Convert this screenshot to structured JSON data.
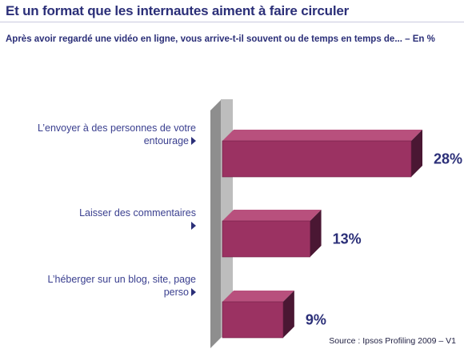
{
  "title": "Et un format que les internautes aiment à faire circuler",
  "subtitle": "Après avoir regardé une vidéo en ligne, vous arrive-t-il souvent ou de temps en temps de... – En %",
  "source": "Source : Ipsos Profiling 2009 – V1",
  "colors": {
    "bar_front": "#9b3262",
    "bar_top": "#b8507d",
    "bar_side": "#4a1733",
    "wall_front": "#bdbdbd",
    "wall_side": "#8e8e8e",
    "label": "#3a3f8f",
    "value": "#2b2f78"
  },
  "chart_data": {
    "type": "bar",
    "orientation": "horizontal",
    "style": "3d",
    "categories": [
      "L’envoyer à des personnes de votre entourage",
      "Laisser des commentaires",
      "L’héberger sur un blog, site, page perso"
    ],
    "category_lines": [
      [
        "L’envoyer à des personnes de votre",
        "entourage"
      ],
      [
        "Laisser des commentaires",
        ""
      ],
      [
        "L’héberger sur un blog, site, page",
        "perso"
      ]
    ],
    "values": [
      28,
      13,
      9
    ],
    "value_labels": [
      "28%",
      "13%",
      "9%"
    ],
    "unit": "%",
    "xlim": [
      0,
      28
    ],
    "grid": false,
    "legend": false
  }
}
